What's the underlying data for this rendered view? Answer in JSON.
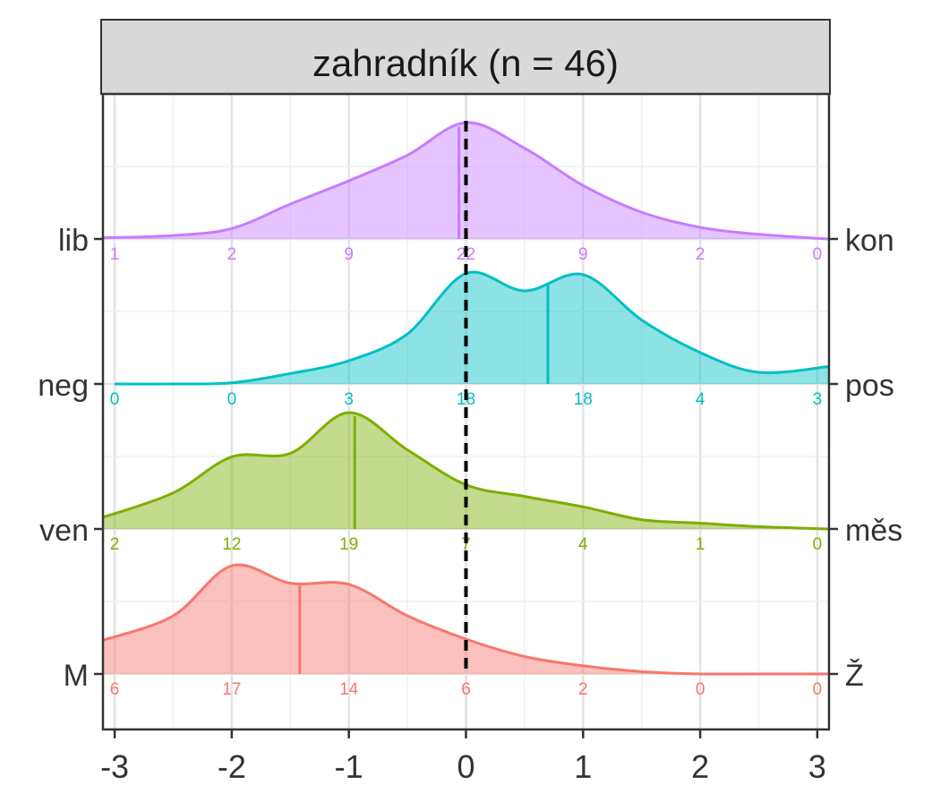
{
  "chart_data": {
    "type": "ridgeline density",
    "title": "zahradník (n = 46)",
    "xlim": [
      -3.1,
      3.1
    ],
    "x_ticks": [
      -3,
      -2,
      -1,
      0,
      1,
      2,
      3
    ],
    "x_tick_labels": [
      "-3",
      "-2",
      "-1",
      "0",
      "1",
      "2",
      "3"
    ],
    "grid": true,
    "reference_line_x": 0,
    "count_bin_centers": [
      -3,
      -2,
      -1,
      0,
      1,
      2,
      3
    ],
    "series": [
      {
        "left_label": "lib",
        "right_label": "kon",
        "color": "#C77CFF",
        "mean": -0.06,
        "counts": [
          1,
          2,
          9,
          22,
          9,
          2,
          0
        ],
        "count_labels": [
          "1",
          "2",
          "9",
          "22",
          "9",
          "2",
          "0"
        ],
        "density": [
          [
            -3.1,
            0.01
          ],
          [
            -2.5,
            0.03
          ],
          [
            -2.0,
            0.09
          ],
          [
            -1.5,
            0.3
          ],
          [
            -1.0,
            0.5
          ],
          [
            -0.5,
            0.72
          ],
          [
            0.0,
            1.0
          ],
          [
            0.5,
            0.78
          ],
          [
            1.0,
            0.46
          ],
          [
            1.5,
            0.23
          ],
          [
            2.0,
            0.1
          ],
          [
            2.5,
            0.04
          ],
          [
            3.1,
            0.0
          ]
        ]
      },
      {
        "left_label": "neg",
        "right_label": "pos",
        "color": "#00BFC4",
        "mean": 0.7,
        "counts": [
          0,
          0,
          3,
          18,
          18,
          4,
          3
        ],
        "count_labels": [
          "0",
          "0",
          "3",
          "18",
          "18",
          "4",
          "3"
        ],
        "density": [
          [
            -3.0,
            0.0
          ],
          [
            -2.5,
            0.0
          ],
          [
            -2.0,
            0.01
          ],
          [
            -1.5,
            0.09
          ],
          [
            -1.0,
            0.2
          ],
          [
            -0.5,
            0.43
          ],
          [
            0.0,
            0.95
          ],
          [
            0.5,
            0.8
          ],
          [
            1.0,
            0.94
          ],
          [
            1.5,
            0.55
          ],
          [
            2.0,
            0.27
          ],
          [
            2.5,
            0.1
          ],
          [
            3.1,
            0.15
          ]
        ]
      },
      {
        "left_label": "ven",
        "right_label": "měs",
        "color": "#7CAE00",
        "mean": -0.95,
        "counts": [
          2,
          12,
          19,
          7,
          4,
          1,
          0
        ],
        "count_labels": [
          "2",
          "12",
          "19",
          "7",
          "4",
          "1",
          "0"
        ],
        "density": [
          [
            -3.1,
            0.1
          ],
          [
            -2.5,
            0.31
          ],
          [
            -2.0,
            0.62
          ],
          [
            -1.5,
            0.65
          ],
          [
            -1.0,
            1.0
          ],
          [
            -0.5,
            0.68
          ],
          [
            0.0,
            0.38
          ],
          [
            0.5,
            0.28
          ],
          [
            1.0,
            0.19
          ],
          [
            1.5,
            0.08
          ],
          [
            2.0,
            0.05
          ],
          [
            2.5,
            0.02
          ],
          [
            3.1,
            0.0
          ]
        ]
      },
      {
        "left_label": "M",
        "right_label": "Ž",
        "color": "#F8766D",
        "mean": -1.42,
        "counts": [
          6,
          17,
          14,
          6,
          2,
          0,
          0
        ],
        "count_labels": [
          "6",
          "17",
          "14",
          "6",
          "2",
          "0",
          "0"
        ],
        "density": [
          [
            -3.1,
            0.29
          ],
          [
            -2.5,
            0.5
          ],
          [
            -2.0,
            0.93
          ],
          [
            -1.5,
            0.78
          ],
          [
            -1.0,
            0.77
          ],
          [
            -0.5,
            0.5
          ],
          [
            0.0,
            0.3
          ],
          [
            0.5,
            0.15
          ],
          [
            1.0,
            0.07
          ],
          [
            1.5,
            0.02
          ],
          [
            2.0,
            0.0
          ],
          [
            2.5,
            0.0
          ],
          [
            3.1,
            0.0
          ]
        ]
      }
    ]
  }
}
